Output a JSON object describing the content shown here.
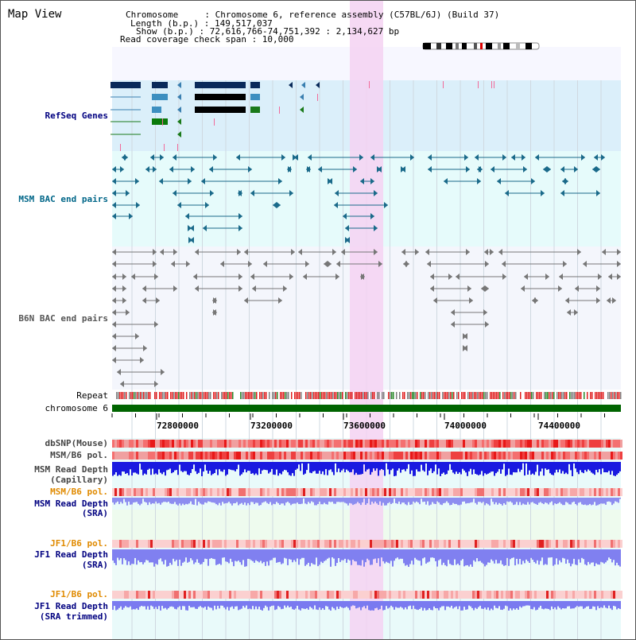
{
  "title": "Map View",
  "info": {
    "chromosome_label": "Chromosome     : Chromosome 6, reference assembly (C57BL/6J) (Build 37)",
    "length_label": "Length (b.p.) : 149,517,037",
    "show_label": "Show (b.p.) : 72,616,766-74,751,392 : 2,134,627 bp",
    "read_span_label": "Read coverage check span : 10,000"
  },
  "tracks": {
    "refseq": "RefSeq Genes",
    "msm_bac": "MSM BAC end pairs",
    "b6n_bac": "B6N BAC end pairs",
    "repeat": "Repeat",
    "chromosome": "chromosome 6",
    "dbsnp": "dbSNP(Mouse)",
    "msm_pol_1": "MSM/B6 pol.",
    "msm_depth_cap_1": "MSM Read Depth",
    "msm_depth_cap_2": "(Capillary)",
    "msm_pol_2": "MSM/B6 pol.",
    "msm_depth_sra_1": "MSM Read Depth",
    "msm_depth_sra_2": "(SRA)",
    "jf1_pol_1": "JF1/B6 pol.",
    "jf1_depth_sra_1": "JF1 Read Depth",
    "jf1_depth_sra_2": "(SRA)",
    "jf1_pol_2": "JF1/B6 pol.",
    "jf1_depth_trim_1": "JF1 Read Depth",
    "jf1_depth_trim_2": "(SRA trimmed)"
  },
  "axis": {
    "ticks": [
      "72800000",
      "73200000",
      "73600000",
      "74000000",
      "74400000"
    ]
  },
  "colors": {
    "refseq_bg": "#dbeffa",
    "msm_bg": "#e6fbfb",
    "lower_bg": "#e9fafa",
    "highlight": "#f4d2f2",
    "chrom_green": "#006400",
    "refseq_label": "#000080",
    "msm_label": "#006688",
    "b6n_label": "#555555",
    "orange_label": "#e08a00",
    "blue_label": "#000080"
  }
}
